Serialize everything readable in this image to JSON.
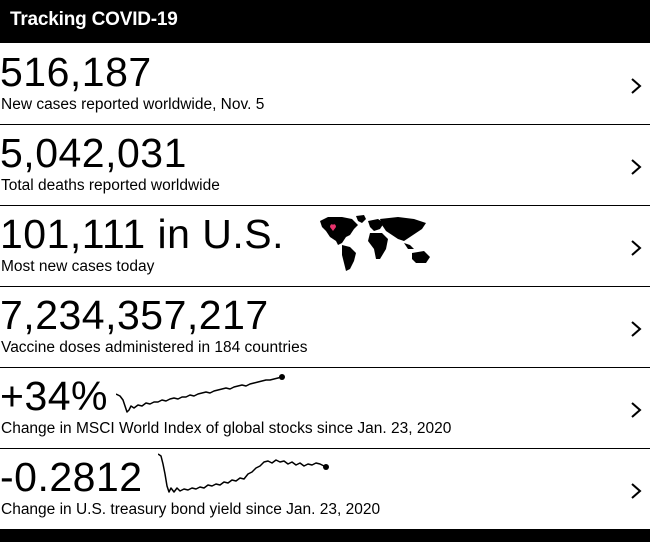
{
  "header": {
    "title": "Tracking COVID-19"
  },
  "rows": [
    {
      "value": "516,187",
      "caption": "New cases reported worldwide, Nov. 5"
    },
    {
      "value": "5,042,031",
      "caption": "Total deaths reported worldwide"
    },
    {
      "value": "101,111 in U.S.",
      "caption": "Most new cases today"
    },
    {
      "value": "7,234,357,217",
      "caption": "Vaccine doses administered in 184 countries"
    },
    {
      "value": "+34%",
      "caption": "Change in MSCI World Index of global stocks since Jan. 23, 2020"
    },
    {
      "value": "-0.2812",
      "caption": "Change in U.S. treasury bond yield since Jan. 23, 2020"
    }
  ],
  "icons": {
    "chevron": "chevron-right-icon",
    "map": "world-map-icon",
    "sparkline": "sparkline-chart"
  },
  "colors": {
    "header_bg": "#000000",
    "header_text": "#ffffff",
    "map_fill": "#000000",
    "map_marker": "#e8336d"
  }
}
